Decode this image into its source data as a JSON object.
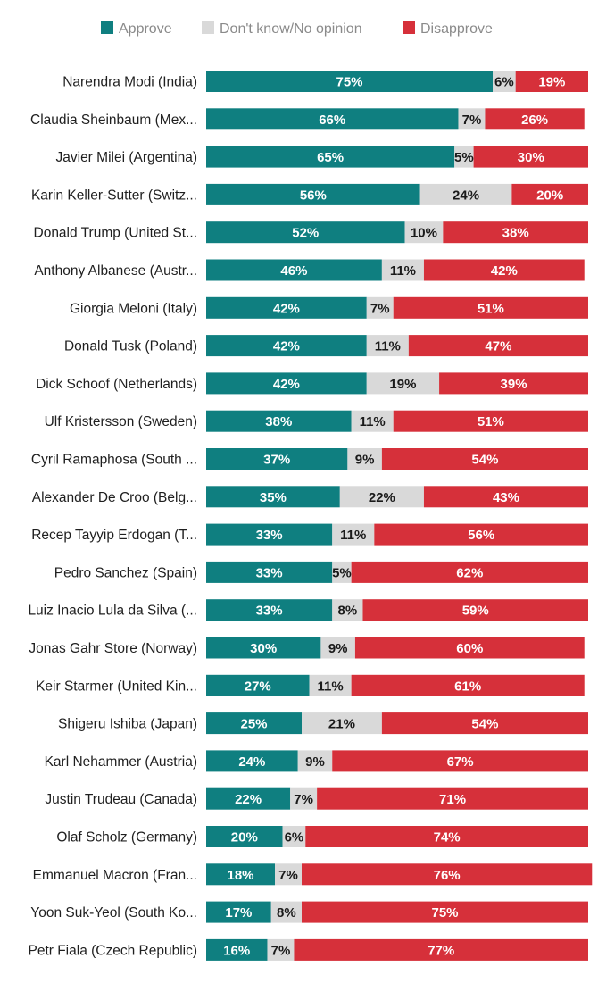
{
  "colors": {
    "approve": "#0f7f80",
    "neutral": "#d9d9d9",
    "disapprove": "#d6303a",
    "approve_text": "#ffffff",
    "neutral_text": "#1a1a1a",
    "disapprove_text": "#ffffff"
  },
  "chart_data": {
    "type": "bar",
    "orientation": "horizontal",
    "stacked": true,
    "title": "",
    "xlabel": "",
    "ylabel": "",
    "xlim": [
      0,
      100
    ],
    "legend_position": "top",
    "grid": false,
    "legend": [
      "Approve",
      "Don't know/No opinion",
      "Disapprove"
    ],
    "categories": [
      "Narendra Modi (India)",
      "Claudia Sheinbaum (Mex...",
      "Javier Milei (Argentina)",
      "Karin Keller-Sutter (Switz...",
      "Donald Trump (United St...",
      "Anthony Albanese (Austr...",
      "Giorgia Meloni (Italy)",
      "Donald Tusk (Poland)",
      "Dick Schoof (Netherlands)",
      "Ulf Kristersson (Sweden)",
      "Cyril Ramaphosa (South ...",
      "Alexander De Croo (Belg...",
      "Recep Tayyip Erdogan (T...",
      "Pedro Sanchez (Spain)",
      "Luiz Inacio Lula da Silva (...",
      "Jonas Gahr Store (Norway)",
      "Keir Starmer (United Kin...",
      "Shigeru Ishiba (Japan)",
      "Karl Nehammer (Austria)",
      "Justin Trudeau (Canada)",
      "Olaf Scholz (Germany)",
      "Emmanuel Macron (Fran...",
      "Yoon Suk-Yeol (South Ko...",
      "Petr Fiala (Czech Republic)"
    ],
    "series": [
      {
        "name": "Approve",
        "values": [
          75,
          66,
          65,
          56,
          52,
          46,
          42,
          42,
          42,
          38,
          37,
          35,
          33,
          33,
          33,
          30,
          27,
          25,
          24,
          22,
          20,
          18,
          17,
          16
        ]
      },
      {
        "name": "Don't know/No opinion",
        "values": [
          6,
          7,
          5,
          24,
          10,
          11,
          7,
          11,
          19,
          11,
          9,
          22,
          11,
          5,
          8,
          9,
          11,
          21,
          9,
          7,
          6,
          7,
          8,
          7
        ]
      },
      {
        "name": "Disapprove",
        "values": [
          19,
          26,
          30,
          20,
          38,
          42,
          51,
          47,
          39,
          51,
          54,
          43,
          56,
          62,
          59,
          60,
          61,
          54,
          67,
          71,
          74,
          76,
          75,
          77
        ]
      }
    ],
    "value_suffix": "%"
  }
}
